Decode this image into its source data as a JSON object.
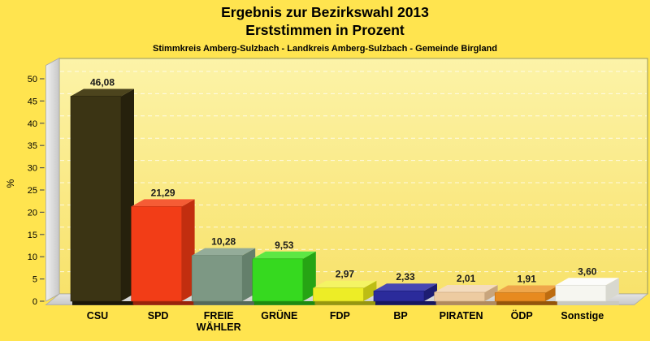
{
  "page": {
    "background": "#ffe44f"
  },
  "chart_data": {
    "type": "bar",
    "title": "Ergebnis zur Bezirkswahl 2013",
    "subtitle": "Erststimmen in Prozent",
    "caption": "Stimmkreis Amberg-Sulzbach - Landkreis Amberg-Sulzbach - Gemeinde Birgland",
    "ylabel": "%",
    "ylim": [
      0,
      50
    ],
    "ytick_step": 5,
    "ytick_labels": [
      "0",
      "5",
      "10",
      "15",
      "20",
      "25",
      "30",
      "35",
      "40",
      "45",
      "50"
    ],
    "grid": true,
    "legend": "none",
    "projection": "3d-bars",
    "categories": [
      "CSU",
      "SPD",
      "FREIE WÄHLER",
      "GRÜNE",
      "FDP",
      "BP",
      "PIRATEN",
      "ÖDP",
      "Sonstige"
    ],
    "category_label_lines": [
      [
        "CSU"
      ],
      [
        "SPD"
      ],
      [
        "FREIE",
        "WÄHLER"
      ],
      [
        "GRÜNE"
      ],
      [
        "FDP"
      ],
      [
        "BP"
      ],
      [
        "PIRATEN"
      ],
      [
        "ÖDP"
      ],
      [
        "Sonstige"
      ]
    ],
    "values": [
      46.08,
      21.29,
      10.28,
      9.53,
      2.97,
      2.33,
      2.01,
      1.91,
      3.6
    ],
    "value_labels": [
      "46,08",
      "21,29",
      "10,28",
      "9,53",
      "2,97",
      "2,33",
      "2,01",
      "1,91",
      "3,60"
    ],
    "bar_colors": [
      {
        "party": "CSU",
        "front": "#3b3414",
        "top": "#4c441d",
        "side": "#26210c",
        "shadow": "#1b1708"
      },
      {
        "party": "SPD",
        "front": "#f23d17",
        "top": "#f55c35",
        "side": "#c22e0f",
        "shadow": "#99240b"
      },
      {
        "party": "FREIE WÄHLER",
        "front": "#7d9884",
        "top": "#94ac99",
        "side": "#647f6b",
        "shadow": "#55695a"
      },
      {
        "party": "GRÜNE",
        "front": "#36d91f",
        "top": "#5ce744",
        "side": "#26a414",
        "shadow": "#1d8a10"
      },
      {
        "party": "FDP",
        "front": "#eded26",
        "top": "#f4f464",
        "side": "#bdbd14",
        "shadow": "#97970f"
      },
      {
        "party": "BP",
        "front": "#2b2b9b",
        "top": "#4747b3",
        "side": "#1d1d72",
        "shadow": "#17175e"
      },
      {
        "party": "PIRATEN",
        "front": "#edcba1",
        "top": "#f4dcbe",
        "side": "#c8a57d",
        "shadow": "#b08a5e"
      },
      {
        "party": "ÖDP",
        "front": "#e78a1f",
        "top": "#efa64a",
        "side": "#bd6c10",
        "shadow": "#94550a"
      },
      {
        "party": "Sonstige",
        "front": "#f6f6f0",
        "top": "#fcfcfa",
        "side": "#d8d8cf",
        "shadow": "#c9c9c0"
      }
    ],
    "colors": {
      "page_bg": "#ffe44f",
      "plot_bg_top": "#fcf3a8",
      "plot_bg_bottom": "#f8e26b",
      "grid": "#ffffff",
      "frame": "#97975f",
      "wall_light": "#f0f0f0",
      "wall_dark": "#c7c7c7",
      "wall_edge": "#a8a8a8",
      "axis_text": "#000000",
      "value_text": "#1a1a1a",
      "tick_mark": "#555555"
    }
  }
}
